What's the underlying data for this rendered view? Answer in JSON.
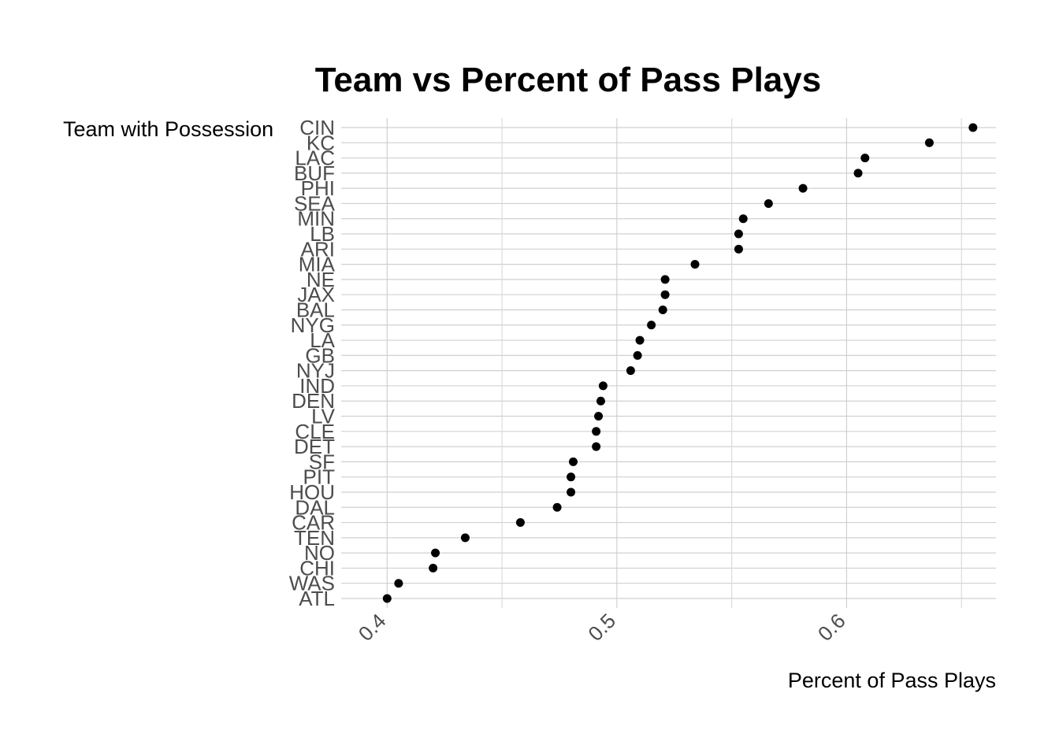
{
  "chart_data": {
    "type": "scatter",
    "title": "Team vs Percent of Pass Plays",
    "xlabel": "Percent of Pass Plays",
    "ylabel": "Team with Possession",
    "xlim": [
      0.38,
      0.665
    ],
    "xticks": [
      0.4,
      0.5,
      0.6
    ],
    "xtick_labels": [
      "0.4",
      "0.5",
      "0.6"
    ],
    "minor_xticks": [
      0.45,
      0.55,
      0.65
    ],
    "grid": true,
    "legend": "none",
    "point_color": "#000000",
    "categories": [
      "CIN",
      "KC",
      "LAC",
      "BUF",
      "PHI",
      "SEA",
      "MIN",
      "LB",
      "ARI",
      "MIA",
      "NE",
      "JAX",
      "BAL",
      "NYG",
      "LA",
      "GB",
      "NYJ",
      "IND",
      "DEN",
      "LV",
      "CLE",
      "DET",
      "SF",
      "PIT",
      "HOU",
      "DAL",
      "CAR",
      "TEN",
      "NO",
      "CHI",
      "WAS",
      "ATL"
    ],
    "values": [
      0.655,
      0.636,
      0.608,
      0.605,
      0.581,
      0.566,
      0.555,
      0.553,
      0.553,
      0.534,
      0.521,
      0.521,
      0.52,
      0.515,
      0.51,
      0.509,
      0.506,
      0.494,
      0.493,
      0.492,
      0.491,
      0.491,
      0.481,
      0.48,
      0.48,
      0.474,
      0.458,
      0.434,
      0.421,
      0.42,
      0.405,
      0.4
    ]
  }
}
